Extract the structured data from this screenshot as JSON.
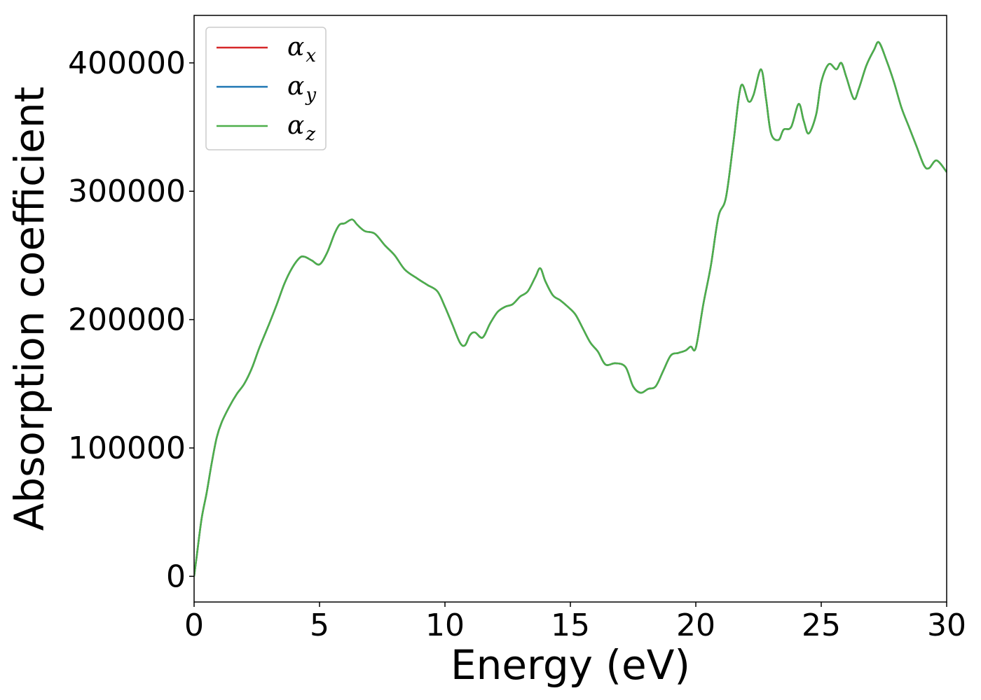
{
  "chart_data": {
    "type": "line",
    "xlabel": "Energy (eV)",
    "ylabel": "Absorption coefficient",
    "xlim": [
      0,
      30
    ],
    "ylim": [
      -20000,
      437000
    ],
    "xticks": [
      0,
      5,
      10,
      15,
      20,
      25,
      30
    ],
    "yticks": [
      0,
      100000,
      200000,
      300000,
      400000
    ],
    "grid": false,
    "legend_position": "top-left",
    "x": [
      0,
      0.1,
      0.3,
      0.5,
      0.7,
      0.9,
      1.1,
      1.4,
      1.7,
      2.0,
      2.3,
      2.6,
      3.0,
      3.3,
      3.6,
      3.9,
      4.2,
      4.4,
      4.7,
      5.0,
      5.3,
      5.6,
      5.8,
      6.0,
      6.3,
      6.5,
      6.8,
      7.2,
      7.6,
      8.0,
      8.4,
      8.9,
      9.3,
      9.7,
      10.0,
      10.3,
      10.6,
      10.8,
      11.0,
      11.2,
      11.5,
      11.8,
      12.1,
      12.4,
      12.7,
      13.0,
      13.3,
      13.6,
      13.8,
      14.0,
      14.3,
      14.6,
      14.9,
      15.2,
      15.5,
      15.8,
      16.1,
      16.4,
      16.8,
      17.2,
      17.5,
      17.8,
      18.1,
      18.4,
      18.7,
      19.0,
      19.3,
      19.6,
      19.8,
      20.0,
      20.3,
      20.6,
      20.9,
      21.2,
      21.5,
      21.8,
      22.1,
      22.3,
      22.6,
      22.8,
      23.0,
      23.3,
      23.5,
      23.8,
      24.1,
      24.3,
      24.5,
      24.8,
      25.0,
      25.3,
      25.6,
      25.8,
      26.0,
      26.3,
      26.5,
      26.8,
      27.1,
      27.3,
      27.6,
      27.9,
      28.2,
      28.5,
      28.8,
      29.1,
      29.3,
      29.6,
      30.0
    ],
    "series": [
      {
        "name": "α",
        "subscript": "x",
        "color": "#d62728",
        "values": [
          0,
          15000,
          45000,
          65000,
          88000,
          108000,
          120000,
          132000,
          142000,
          150000,
          162000,
          178000,
          197000,
          212000,
          228000,
          240000,
          248000,
          249000,
          246000,
          243000,
          252000,
          267000,
          274000,
          275000,
          278000,
          274000,
          269000,
          267000,
          258000,
          250000,
          239000,
          232000,
          227000,
          222000,
          210000,
          196000,
          182000,
          180000,
          188000,
          190000,
          186000,
          197000,
          206000,
          210000,
          212000,
          218000,
          222000,
          233000,
          240000,
          230000,
          219000,
          215000,
          210000,
          204000,
          193000,
          182000,
          175000,
          165000,
          166000,
          163000,
          148000,
          143000,
          146000,
          148000,
          160000,
          172000,
          174000,
          176000,
          179000,
          178000,
          212000,
          242000,
          280000,
          295000,
          338000,
          382000,
          370000,
          375000,
          395000,
          372000,
          345000,
          340000,
          348000,
          350000,
          368000,
          355000,
          345000,
          360000,
          385000,
          399000,
          395000,
          400000,
          389000,
          372000,
          380000,
          398000,
          410000,
          416000,
          402000,
          385000,
          365000,
          350000,
          335000,
          320000,
          318000,
          324000,
          315000
        ]
      },
      {
        "name": "α",
        "subscript": "y",
        "color": "#1f77b4",
        "values": [
          0,
          15000,
          45000,
          65000,
          88000,
          108000,
          120000,
          132000,
          142000,
          150000,
          162000,
          178000,
          197000,
          212000,
          228000,
          240000,
          248000,
          249000,
          246000,
          243000,
          252000,
          267000,
          274000,
          275000,
          278000,
          274000,
          269000,
          267000,
          258000,
          250000,
          239000,
          232000,
          227000,
          222000,
          210000,
          196000,
          182000,
          180000,
          188000,
          190000,
          186000,
          197000,
          206000,
          210000,
          212000,
          218000,
          222000,
          233000,
          240000,
          230000,
          219000,
          215000,
          210000,
          204000,
          193000,
          182000,
          175000,
          165000,
          166000,
          163000,
          148000,
          143000,
          146000,
          148000,
          160000,
          172000,
          174000,
          176000,
          179000,
          178000,
          212000,
          242000,
          280000,
          295000,
          338000,
          382000,
          370000,
          375000,
          395000,
          372000,
          345000,
          340000,
          348000,
          350000,
          368000,
          355000,
          345000,
          360000,
          385000,
          399000,
          395000,
          400000,
          389000,
          372000,
          380000,
          398000,
          410000,
          416000,
          402000,
          385000,
          365000,
          350000,
          335000,
          320000,
          318000,
          324000,
          315000
        ]
      },
      {
        "name": "α",
        "subscript": "z",
        "color": "#4daf4a",
        "values": [
          0,
          15000,
          45000,
          65000,
          88000,
          108000,
          120000,
          132000,
          142000,
          150000,
          162000,
          178000,
          197000,
          212000,
          228000,
          240000,
          248000,
          249000,
          246000,
          243000,
          252000,
          267000,
          274000,
          275000,
          278000,
          274000,
          269000,
          267000,
          258000,
          250000,
          239000,
          232000,
          227000,
          222000,
          210000,
          196000,
          182000,
          180000,
          188000,
          190000,
          186000,
          197000,
          206000,
          210000,
          212000,
          218000,
          222000,
          233000,
          240000,
          230000,
          219000,
          215000,
          210000,
          204000,
          193000,
          182000,
          175000,
          165000,
          166000,
          163000,
          148000,
          143000,
          146000,
          148000,
          160000,
          172000,
          174000,
          176000,
          179000,
          178000,
          212000,
          242000,
          280000,
          295000,
          338000,
          382000,
          370000,
          375000,
          395000,
          372000,
          345000,
          340000,
          348000,
          350000,
          368000,
          355000,
          345000,
          360000,
          385000,
          399000,
          395000,
          400000,
          389000,
          372000,
          380000,
          398000,
          410000,
          416000,
          402000,
          385000,
          365000,
          350000,
          335000,
          320000,
          318000,
          324000,
          315000
        ]
      }
    ]
  }
}
